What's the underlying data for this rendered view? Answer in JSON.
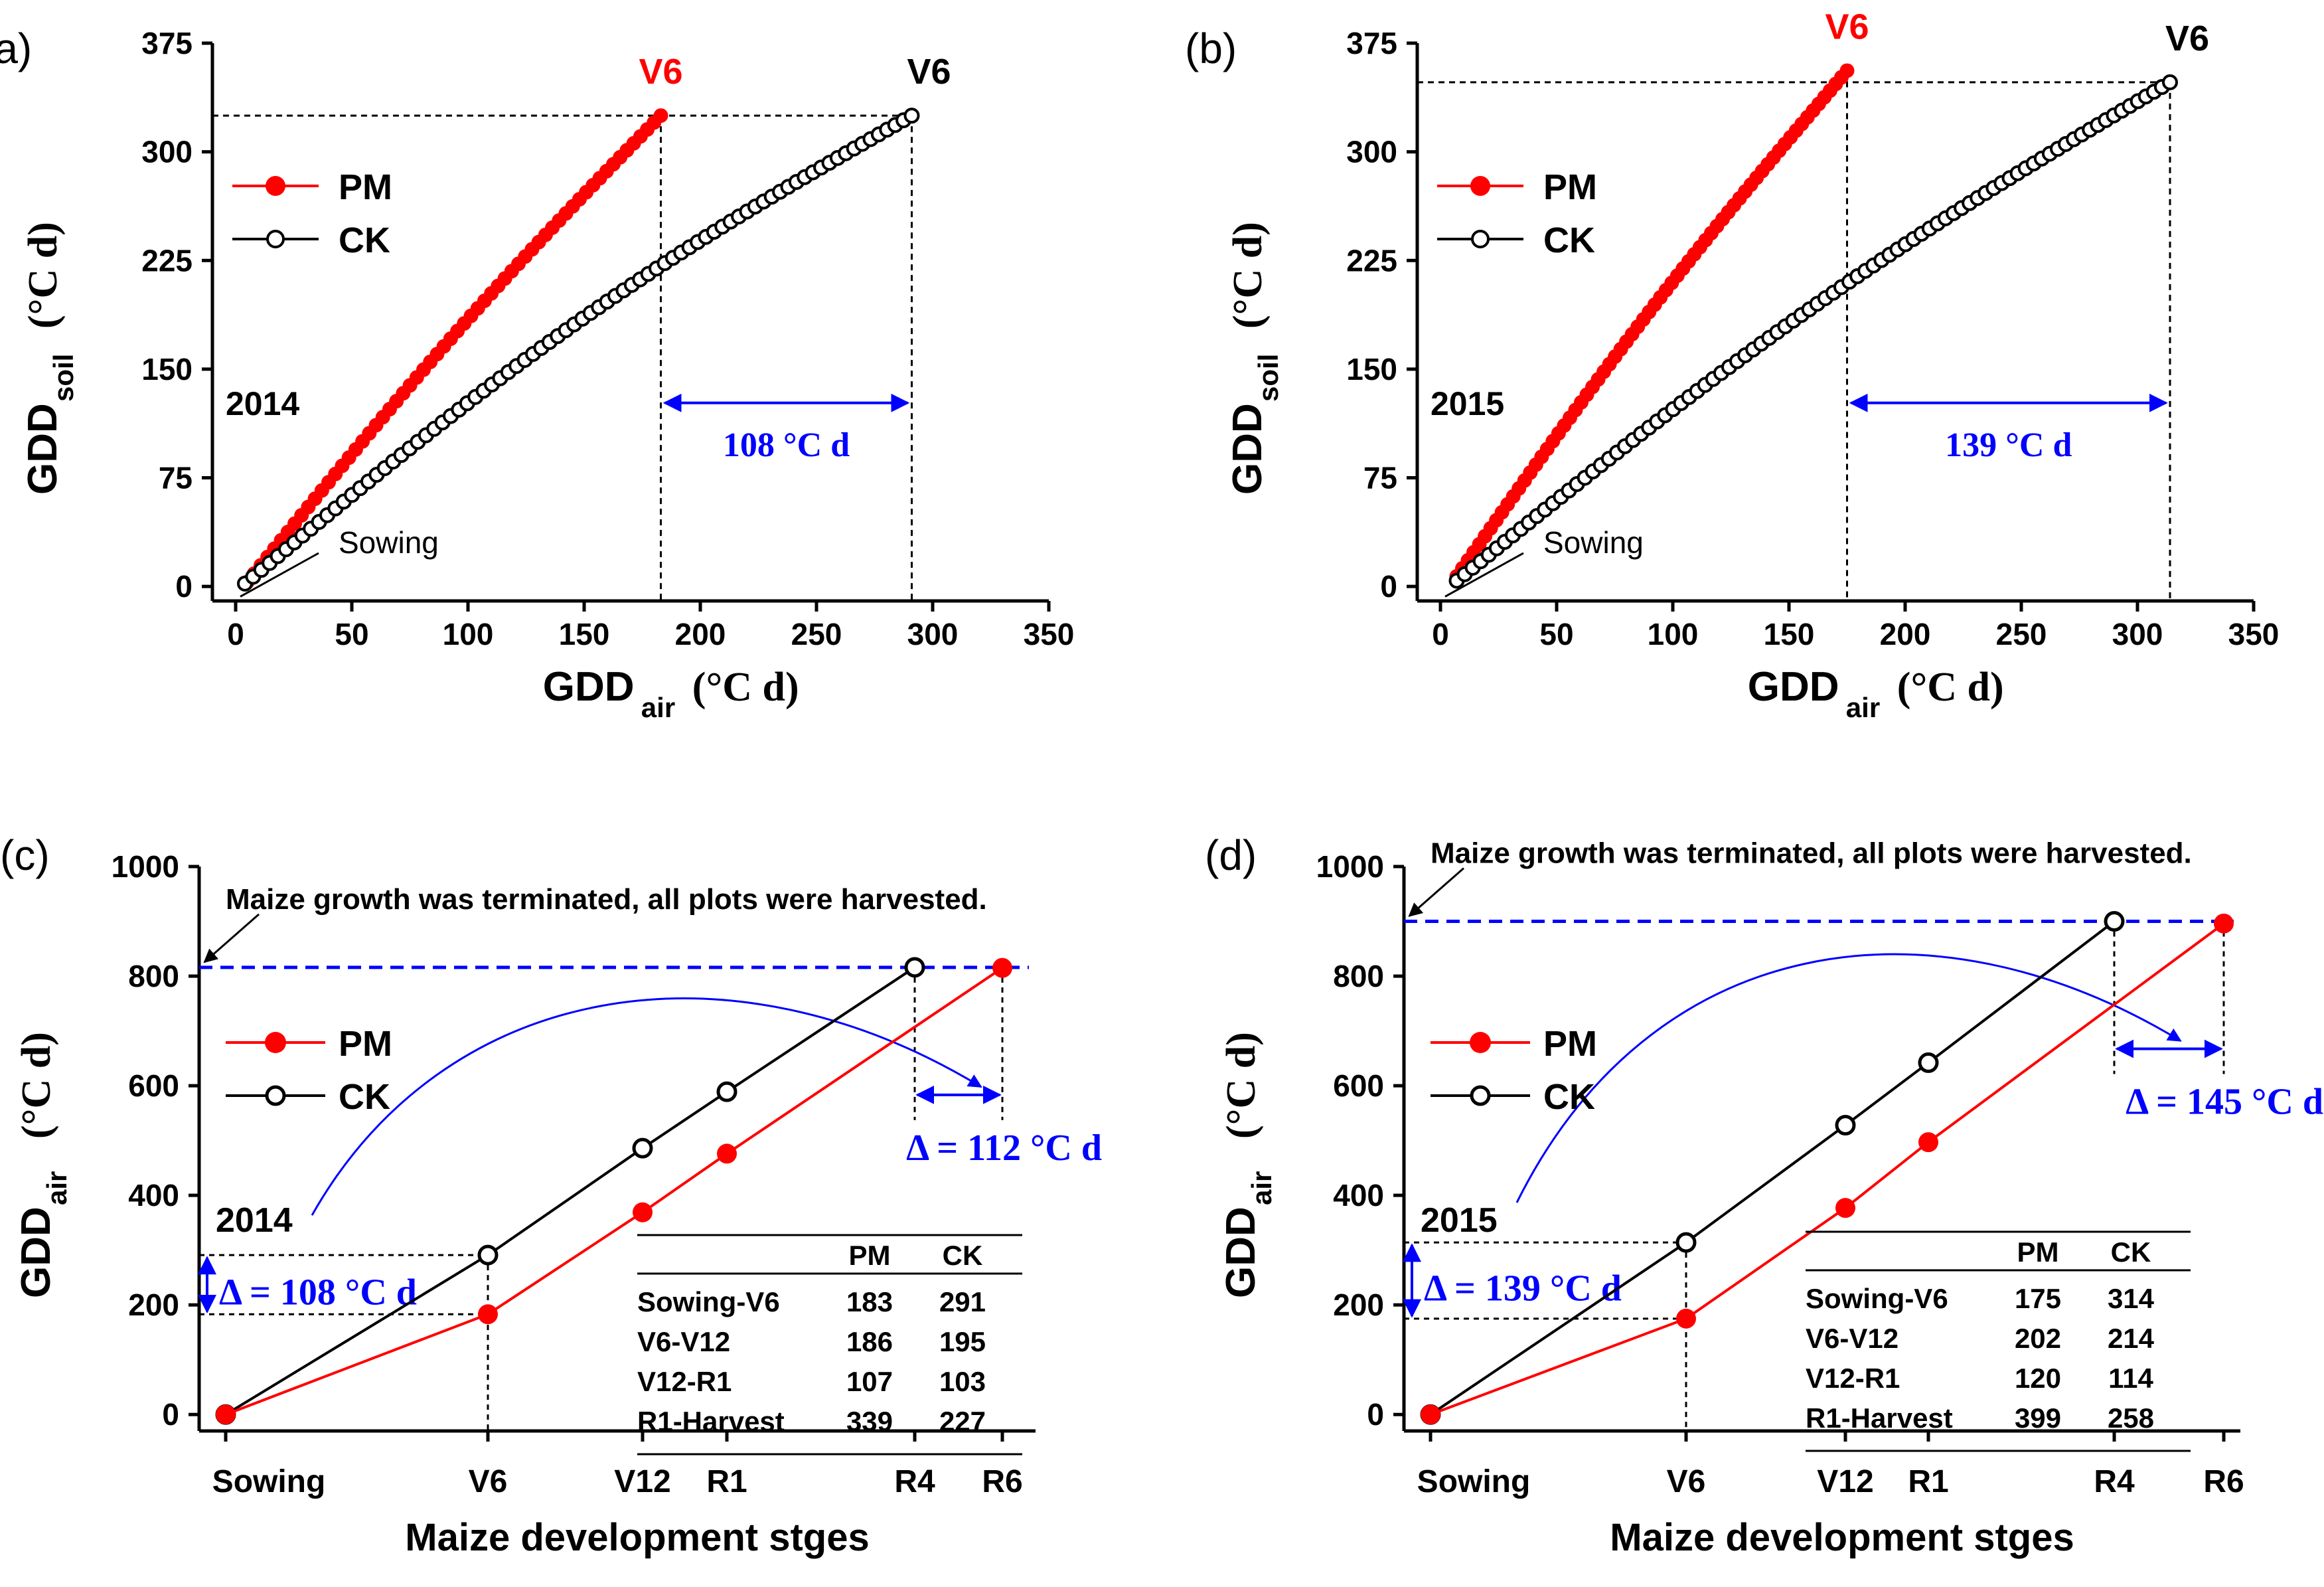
{
  "colors": {
    "pm": "#ff0000",
    "ck": "#000000",
    "accent": "#0000ff",
    "axis": "#000000"
  },
  "chart_data": [
    {
      "panel": "(a)",
      "type": "scatter",
      "year_label": "2014",
      "xlabel_main": "GDD",
      "xlabel_sub": "air",
      "xlabel_unit": "(°C d)",
      "ylabel_main": "GDD",
      "ylabel_sub": "soil",
      "ylabel_unit": "(°C d)",
      "xlim": [
        -10,
        350
      ],
      "ylim": [
        -10,
        375
      ],
      "xticks": [
        0,
        50,
        100,
        150,
        200,
        250,
        300,
        350
      ],
      "yticks": [
        0,
        75,
        150,
        225,
        300,
        375
      ],
      "legend": [
        "PM",
        "CK"
      ],
      "series": [
        {
          "name": "PM",
          "style": "filled",
          "start": [
            5,
            3
          ],
          "end": [
            183,
            325
          ],
          "n": 62,
          "bend": 0.03
        },
        {
          "name": "CK",
          "style": "open",
          "start": [
            4,
            2
          ],
          "end": [
            291,
            325
          ],
          "n": 82,
          "bend": 0.06
        }
      ],
      "v6_pm": {
        "label": "V6",
        "x": 183,
        "y": 325
      },
      "v6_ck": {
        "label": "V6",
        "x": 291,
        "y": 325
      },
      "diff_label": "108 °C d",
      "sowing_label": "Sowing"
    },
    {
      "panel": "(b)",
      "type": "scatter",
      "year_label": "2015",
      "xlabel_main": "GDD",
      "xlabel_sub": "air",
      "xlabel_unit": "(°C d)",
      "ylabel_main": "GDD",
      "ylabel_sub": "soil",
      "ylabel_unit": "(°C d)",
      "xlim": [
        -10,
        350
      ],
      "ylim": [
        -10,
        375
      ],
      "xticks": [
        0,
        50,
        100,
        150,
        200,
        250,
        300,
        350
      ],
      "yticks": [
        0,
        75,
        150,
        225,
        300,
        375
      ],
      "legend": [
        "PM",
        "CK"
      ],
      "series": [
        {
          "name": "PM",
          "style": "filled",
          "start": [
            7,
            7
          ],
          "end": [
            175,
            356
          ],
          "n": 70,
          "bend": 0.03
        },
        {
          "name": "CK",
          "style": "open",
          "start": [
            7,
            4
          ],
          "end": [
            314,
            348
          ],
          "n": 90,
          "bend": 0.05
        }
      ],
      "v6_pm": {
        "label": "V6",
        "x": 175,
        "y": 356
      },
      "v6_ck": {
        "label": "V6",
        "x": 314,
        "y": 348
      },
      "diff_label": "139  °C d",
      "sowing_label": "Sowing"
    },
    {
      "panel": "(c)",
      "type": "line",
      "year_label": "2014",
      "xlabel": "Maize development stges",
      "ylabel_main": "GDD",
      "ylabel_sub": "air",
      "ylabel_unit": "(°C d)",
      "ylim": [
        -30,
        1000
      ],
      "yticks": [
        0,
        200,
        400,
        600,
        800,
        1000
      ],
      "stage_labels": [
        "Sowing",
        "V6",
        "V12",
        "R1",
        "R4",
        "R6"
      ],
      "legend": [
        "PM",
        "CK"
      ],
      "series": [
        {
          "name": "PM",
          "stages": [
            "Sowing",
            "V6",
            "V12",
            "R1",
            "R6"
          ],
          "values": [
            0,
            183,
            369,
            476,
            815
          ]
        },
        {
          "name": "CK",
          "stages": [
            "Sowing",
            "V6",
            "V12",
            "R1",
            "R4"
          ],
          "values": [
            0,
            291,
            486,
            589,
            816
          ]
        }
      ],
      "harvest_line": 816,
      "harvest_note": "Maize growth was terminated, all plots were harvested.",
      "delta_v6_label": "Δ = 108 °C d",
      "delta_end_label": "Δ = 112 °C d",
      "table": {
        "headers": [
          "",
          "PM",
          "CK"
        ],
        "rows": [
          [
            "Sowing-V6",
            "183",
            "291"
          ],
          [
            "V6-V12",
            "186",
            "195"
          ],
          [
            "V12-R1",
            "107",
            "103"
          ],
          [
            "R1-Harvest",
            "339",
            "227"
          ]
        ]
      }
    },
    {
      "panel": "(d)",
      "type": "line",
      "year_label": "2015",
      "xlabel": "Maize development stges",
      "ylabel_main": "GDD",
      "ylabel_sub": "air",
      "ylabel_unit": "(°C d)",
      "ylim": [
        -30,
        1000
      ],
      "yticks": [
        0,
        200,
        400,
        600,
        800,
        1000
      ],
      "stage_labels": [
        "Sowing",
        "V6",
        "V12",
        "R1",
        "R4",
        "R6"
      ],
      "legend": [
        "PM",
        "CK"
      ],
      "series": [
        {
          "name": "PM",
          "stages": [
            "Sowing",
            "V6",
            "V12",
            "R1",
            "R6"
          ],
          "values": [
            0,
            175,
            377,
            497,
            896
          ]
        },
        {
          "name": "CK",
          "stages": [
            "Sowing",
            "V6",
            "V12",
            "R1",
            "R4"
          ],
          "values": [
            0,
            314,
            528,
            642,
            900
          ]
        }
      ],
      "harvest_line": 900,
      "harvest_note": "Maize growth was terminated, all plots were harvested.",
      "delta_v6_label": "Δ = 139 °C d",
      "delta_end_label": "Δ = 145 °C d",
      "table": {
        "headers": [
          "",
          "PM",
          "CK"
        ],
        "rows": [
          [
            "Sowing-V6",
            "175",
            "314"
          ],
          [
            "V6-V12",
            "202",
            "214"
          ],
          [
            "V12-R1",
            "120",
            "114"
          ],
          [
            "R1-Harvest",
            "399",
            "258"
          ]
        ]
      }
    }
  ]
}
